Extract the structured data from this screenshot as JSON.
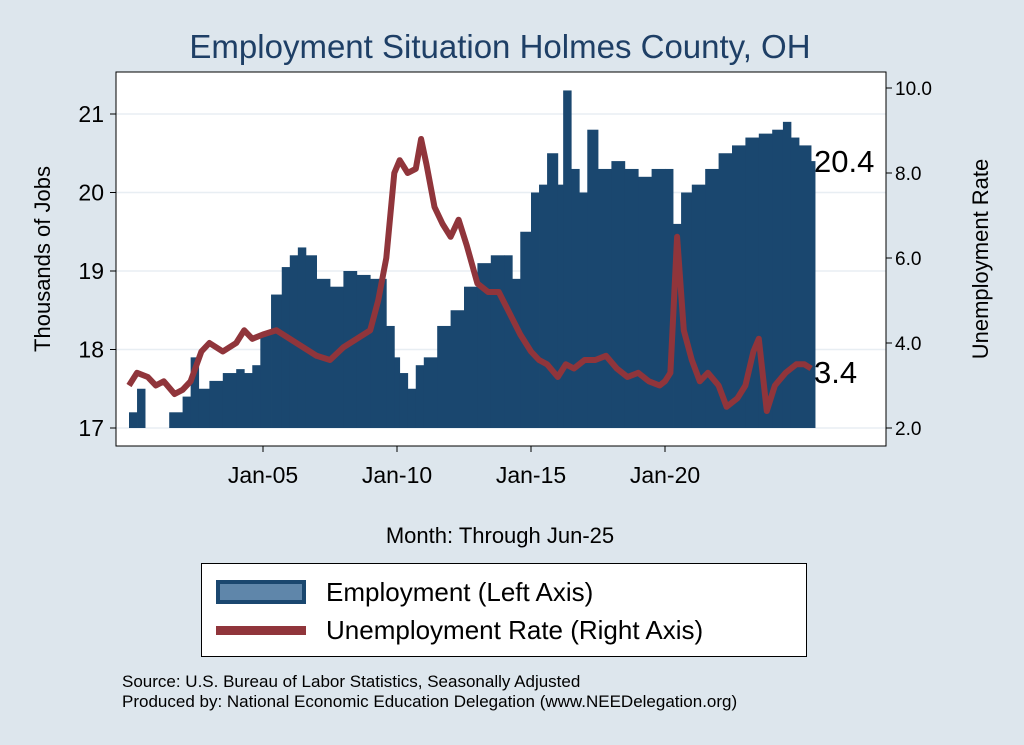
{
  "chart_data": {
    "type": "bar+line",
    "title": "Employment Situation Holmes  County, OH",
    "xlabel": "Month: Through Jun-25",
    "ylabel_left": "Thousands of Jobs",
    "ylabel_right": "Unemployment Rate",
    "x_ticks": [
      "Jan-05",
      "Jan-10",
      "Jan-15",
      "Jan-20"
    ],
    "y_left_ticks": [
      "17",
      "18",
      "19",
      "20",
      "21"
    ],
    "y_left_range": [
      17,
      21.4
    ],
    "y_right_ticks": [
      "2.0",
      "4.0",
      "6.0",
      "8.0",
      "10.0"
    ],
    "y_right_range": [
      2,
      10.2
    ],
    "x_range": [
      2000,
      2025.5
    ],
    "grid": true,
    "legend_position": "bottom",
    "end_labels": {
      "employment": "20.4",
      "unemployment": "3.4"
    },
    "series": [
      {
        "name": "Employment (Left Axis)",
        "type": "bar",
        "color": "#1a476f",
        "points": [
          [
            2000.0,
            17.2
          ],
          [
            2000.3,
            17.5
          ],
          [
            2000.6,
            17.0
          ],
          [
            2001.0,
            17.0
          ],
          [
            2001.5,
            17.2
          ],
          [
            2002.0,
            17.4
          ],
          [
            2002.3,
            17.9
          ],
          [
            2002.6,
            17.5
          ],
          [
            2003.0,
            17.6
          ],
          [
            2003.5,
            17.7
          ],
          [
            2004.0,
            17.75
          ],
          [
            2004.3,
            17.7
          ],
          [
            2004.6,
            17.8
          ],
          [
            2004.9,
            18.2
          ],
          [
            2005.3,
            18.7
          ],
          [
            2005.7,
            19.05
          ],
          [
            2006.0,
            19.2
          ],
          [
            2006.3,
            19.3
          ],
          [
            2006.6,
            19.2
          ],
          [
            2007.0,
            18.9
          ],
          [
            2007.5,
            18.8
          ],
          [
            2008.0,
            19.0
          ],
          [
            2008.5,
            18.95
          ],
          [
            2009.0,
            18.9
          ],
          [
            2009.3,
            18.9
          ],
          [
            2009.6,
            18.3
          ],
          [
            2009.9,
            17.9
          ],
          [
            2010.1,
            17.7
          ],
          [
            2010.4,
            17.5
          ],
          [
            2010.7,
            17.8
          ],
          [
            2011.0,
            17.9
          ],
          [
            2011.5,
            18.3
          ],
          [
            2012.0,
            18.5
          ],
          [
            2012.5,
            18.8
          ],
          [
            2013.0,
            19.1
          ],
          [
            2013.5,
            19.2
          ],
          [
            2014.0,
            19.2
          ],
          [
            2014.3,
            18.9
          ],
          [
            2014.6,
            19.5
          ],
          [
            2015.0,
            20.0
          ],
          [
            2015.3,
            20.1
          ],
          [
            2015.6,
            20.5
          ],
          [
            2016.0,
            20.1
          ],
          [
            2016.2,
            21.3
          ],
          [
            2016.5,
            20.3
          ],
          [
            2016.8,
            20.0
          ],
          [
            2017.1,
            20.8
          ],
          [
            2017.5,
            20.3
          ],
          [
            2018.0,
            20.4
          ],
          [
            2018.5,
            20.3
          ],
          [
            2019.0,
            20.2
          ],
          [
            2019.5,
            20.3
          ],
          [
            2020.0,
            20.3
          ],
          [
            2020.3,
            19.6
          ],
          [
            2020.6,
            20.0
          ],
          [
            2021.0,
            20.1
          ],
          [
            2021.5,
            20.3
          ],
          [
            2022.0,
            20.5
          ],
          [
            2022.5,
            20.6
          ],
          [
            2023.0,
            20.7
          ],
          [
            2023.5,
            20.75
          ],
          [
            2024.0,
            20.8
          ],
          [
            2024.4,
            20.9
          ],
          [
            2024.7,
            20.7
          ],
          [
            2025.0,
            20.6
          ],
          [
            2025.45,
            20.4
          ]
        ]
      },
      {
        "name": "Unemployment Rate (Right Axis)",
        "type": "line",
        "color": "#90353b",
        "points": [
          [
            2000.0,
            3.0
          ],
          [
            2000.3,
            3.3
          ],
          [
            2000.7,
            3.2
          ],
          [
            2001.0,
            3.0
          ],
          [
            2001.3,
            3.1
          ],
          [
            2001.7,
            2.8
          ],
          [
            2002.0,
            2.9
          ],
          [
            2002.3,
            3.1
          ],
          [
            2002.7,
            3.8
          ],
          [
            2003.0,
            4.0
          ],
          [
            2003.5,
            3.8
          ],
          [
            2004.0,
            4.0
          ],
          [
            2004.3,
            4.3
          ],
          [
            2004.6,
            4.1
          ],
          [
            2005.0,
            4.2
          ],
          [
            2005.5,
            4.3
          ],
          [
            2006.0,
            4.1
          ],
          [
            2006.5,
            3.9
          ],
          [
            2007.0,
            3.7
          ],
          [
            2007.5,
            3.6
          ],
          [
            2008.0,
            3.9
          ],
          [
            2008.5,
            4.1
          ],
          [
            2009.0,
            4.3
          ],
          [
            2009.3,
            5.0
          ],
          [
            2009.6,
            6.0
          ],
          [
            2009.9,
            8.0
          ],
          [
            2010.1,
            8.3
          ],
          [
            2010.4,
            8.0
          ],
          [
            2010.7,
            8.1
          ],
          [
            2010.9,
            8.8
          ],
          [
            2011.1,
            8.2
          ],
          [
            2011.4,
            7.2
          ],
          [
            2011.7,
            6.8
          ],
          [
            2012.0,
            6.5
          ],
          [
            2012.3,
            6.9
          ],
          [
            2012.6,
            6.3
          ],
          [
            2013.0,
            5.4
          ],
          [
            2013.4,
            5.2
          ],
          [
            2013.8,
            5.2
          ],
          [
            2014.2,
            4.7
          ],
          [
            2014.6,
            4.2
          ],
          [
            2015.0,
            3.8
          ],
          [
            2015.3,
            3.6
          ],
          [
            2015.6,
            3.5
          ],
          [
            2016.0,
            3.2
          ],
          [
            2016.3,
            3.5
          ],
          [
            2016.6,
            3.4
          ],
          [
            2017.0,
            3.6
          ],
          [
            2017.4,
            3.6
          ],
          [
            2017.8,
            3.7
          ],
          [
            2018.2,
            3.4
          ],
          [
            2018.6,
            3.2
          ],
          [
            2019.0,
            3.3
          ],
          [
            2019.4,
            3.1
          ],
          [
            2019.8,
            3.0
          ],
          [
            2020.0,
            3.1
          ],
          [
            2020.2,
            3.3
          ],
          [
            2020.45,
            6.5
          ],
          [
            2020.7,
            4.3
          ],
          [
            2021.0,
            3.6
          ],
          [
            2021.3,
            3.1
          ],
          [
            2021.6,
            3.3
          ],
          [
            2022.0,
            3.0
          ],
          [
            2022.3,
            2.5
          ],
          [
            2022.7,
            2.7
          ],
          [
            2023.0,
            3.0
          ],
          [
            2023.3,
            3.8
          ],
          [
            2023.5,
            4.1
          ],
          [
            2023.8,
            2.4
          ],
          [
            2024.1,
            3.0
          ],
          [
            2024.5,
            3.3
          ],
          [
            2024.9,
            3.5
          ],
          [
            2025.2,
            3.5
          ],
          [
            2025.45,
            3.4
          ]
        ]
      }
    ]
  },
  "footer": {
    "source": "Source: U.S. Bureau of Labor Statistics, Seasonally Adjusted",
    "produced": "Produced by: National Economic Education Delegation (www.NEEDelegation.org)"
  }
}
